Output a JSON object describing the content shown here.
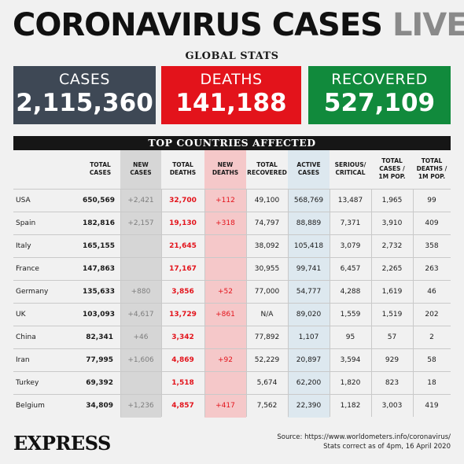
{
  "headline": {
    "main": "CORONAVIRUS CASES",
    "live": "LIVE"
  },
  "global_stats_title": "GLOBAL STATS",
  "boxes": {
    "cases": {
      "label": "CASES",
      "value": "2,115,360",
      "color": "#3e4855"
    },
    "deaths": {
      "label": "DEATHS",
      "value": "141,188",
      "color": "#e3131b"
    },
    "recovered": {
      "label": "RECOVERED",
      "value": "527,109",
      "color": "#118a3c"
    }
  },
  "table": {
    "title": "TOP COUNTRIES AFFECTED",
    "headers": [
      "TOTAL\nCASES",
      "NEW\nCASES",
      "TOTAL\nDEATHS",
      "NEW\nDEATHS",
      "TOTAL\nRECOVERED",
      "ACTIVE\nCASES",
      "SERIOUS/\nCRITICAL",
      "TOTAL\nCASES /\n1M POP.",
      "TOTAL\nDEATHS /\n1M POP."
    ],
    "rows": [
      [
        "USA",
        "650,569",
        "+2,421",
        "32,700",
        "+112",
        "49,100",
        "568,769",
        "13,487",
        "1,965",
        "99"
      ],
      [
        "Spain",
        "182,816",
        "+2,157",
        "19,130",
        "+318",
        "74,797",
        "88,889",
        "7,371",
        "3,910",
        "409"
      ],
      [
        "Italy",
        "165,155",
        "",
        "21,645",
        "",
        "38,092",
        "105,418",
        "3,079",
        "2,732",
        "358"
      ],
      [
        "France",
        "147,863",
        "",
        "17,167",
        "",
        "30,955",
        "99,741",
        "6,457",
        "2,265",
        "263"
      ],
      [
        "Germany",
        "135,633",
        "+880",
        "3,856",
        "+52",
        "77,000",
        "54,777",
        "4,288",
        "1,619",
        "46"
      ],
      [
        "UK",
        "103,093",
        "+4,617",
        "13,729",
        "+861",
        "N/A",
        "89,020",
        "1,559",
        "1,519",
        "202"
      ],
      [
        "China",
        "82,341",
        "+46",
        "3,342",
        "",
        "77,892",
        "1,107",
        "95",
        "57",
        "2"
      ],
      [
        "Iran",
        "77,995",
        "+1,606",
        "4,869",
        "+92",
        "52,229",
        "20,897",
        "3,594",
        "929",
        "58"
      ],
      [
        "Turkey",
        "69,392",
        "",
        "1,518",
        "",
        "5,674",
        "62,200",
        "1,820",
        "823",
        "18"
      ],
      [
        "Belgium",
        "34,809",
        "+1,236",
        "4,857",
        "+417",
        "7,562",
        "22,390",
        "1,182",
        "3,003",
        "419"
      ]
    ]
  },
  "footer": {
    "logo": "EXPRESS",
    "source": "Source: https://www.worldometers.info/coronavirus/",
    "stats_note": "Stats correct as of 4pm, 16 April 2020"
  }
}
